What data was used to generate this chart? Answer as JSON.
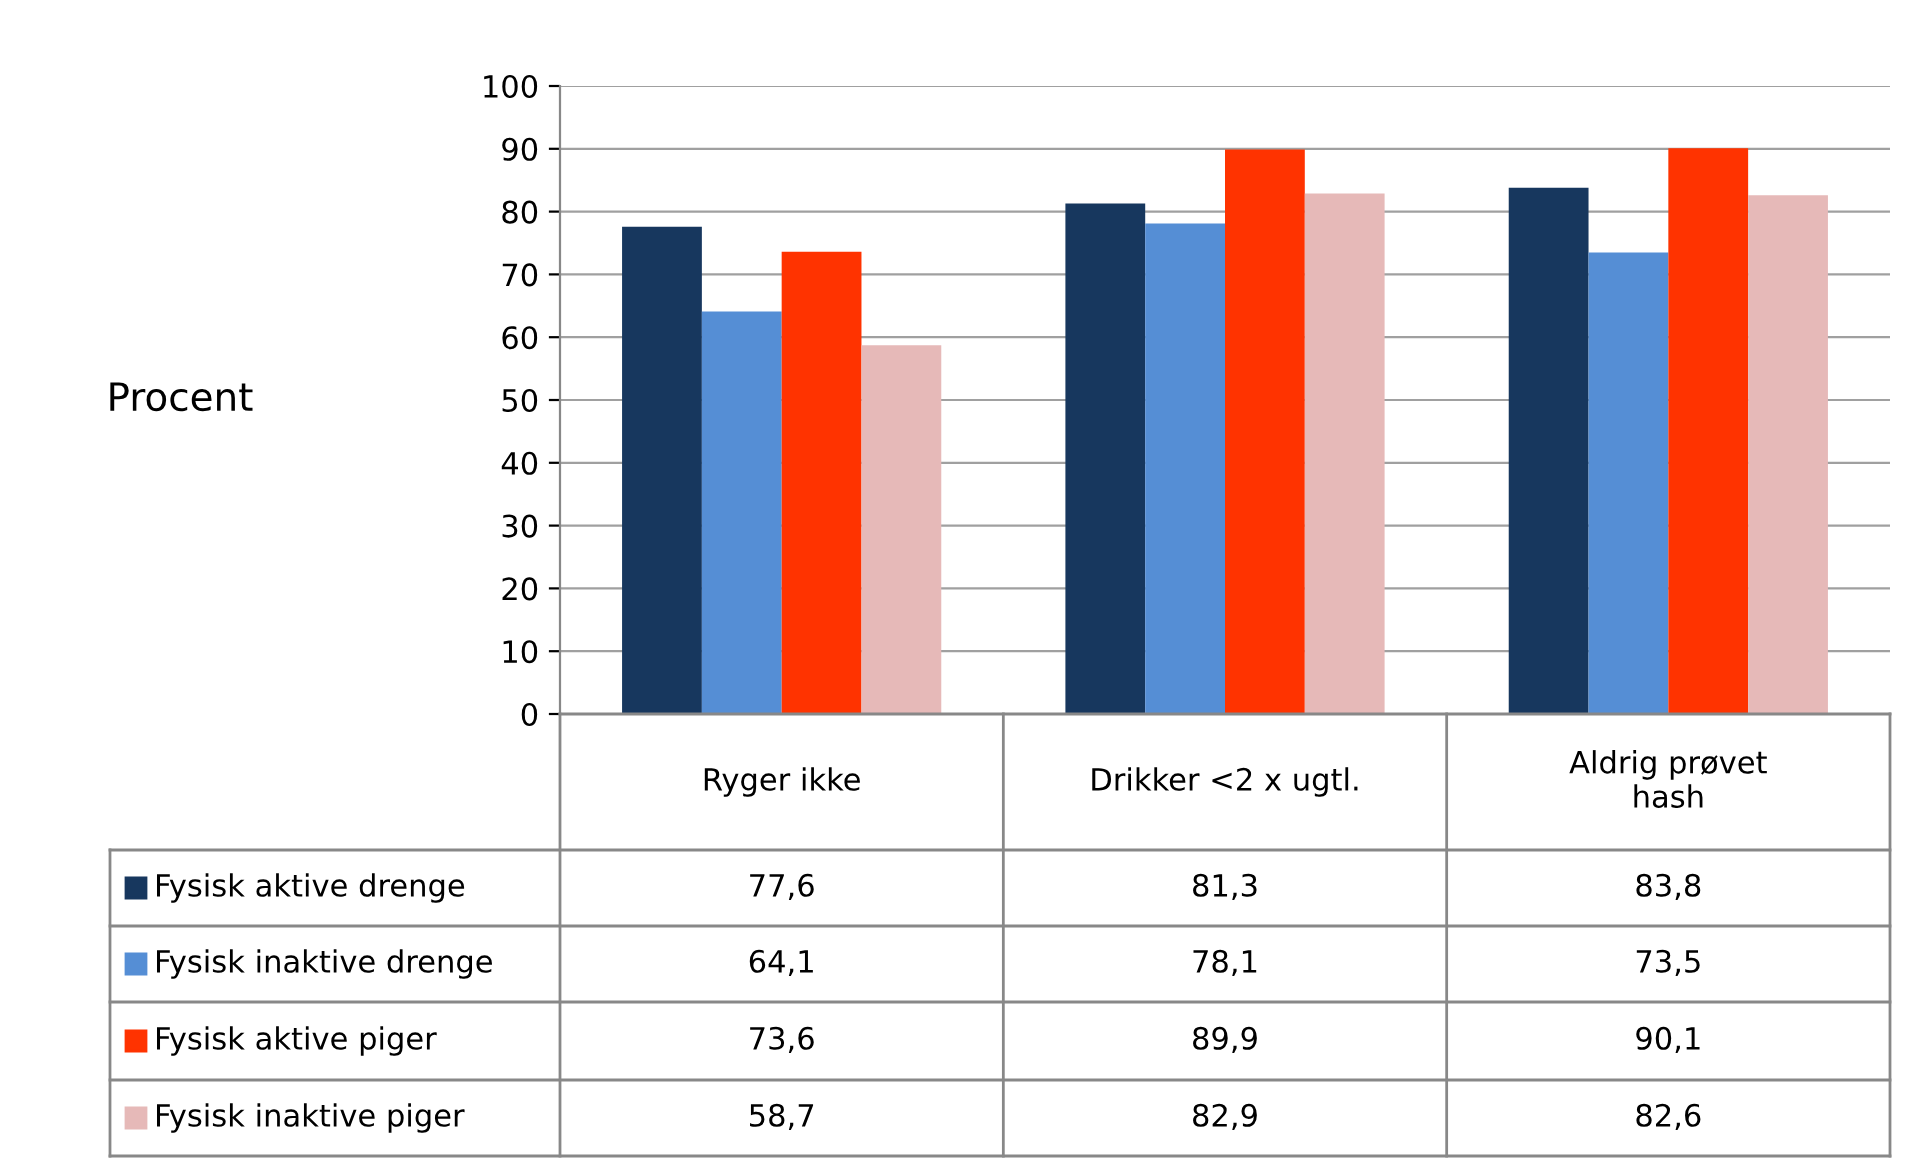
{
  "chart_data": {
    "type": "bar",
    "annotations": [
      "Procent"
    ],
    "categories": [
      "Ryger ikke",
      "Drikker <2 x ugtl.",
      "Aldrig prøvet\nhash"
    ],
    "series": [
      {
        "name": "Fysisk aktive drenge",
        "color": "#17375e",
        "values": [
          77.6,
          81.3,
          83.8
        ],
        "value_labels": [
          "77,6",
          "81,3",
          "83,8"
        ]
      },
      {
        "name": "Fysisk inaktive drenge",
        "color": "#558ed5",
        "values": [
          64.1,
          78.1,
          73.5
        ],
        "value_labels": [
          "64,1",
          "78,1",
          "73,5"
        ]
      },
      {
        "name": "Fysisk aktive piger",
        "color": "#ff3300",
        "values": [
          73.6,
          89.9,
          90.1
        ],
        "value_labels": [
          "73,6",
          "89,9",
          "90,1"
        ]
      },
      {
        "name": "Fysisk inaktive piger",
        "color": "#e6b9b8",
        "values": [
          58.7,
          82.9,
          82.6
        ],
        "value_labels": [
          "58,7",
          "82,9",
          "82,6"
        ]
      }
    ],
    "ylim": [
      0,
      100
    ],
    "yticks": [
      0,
      10,
      20,
      30,
      40,
      50,
      60,
      70,
      80,
      90,
      100
    ],
    "grid": "y",
    "legend": "bottom"
  }
}
